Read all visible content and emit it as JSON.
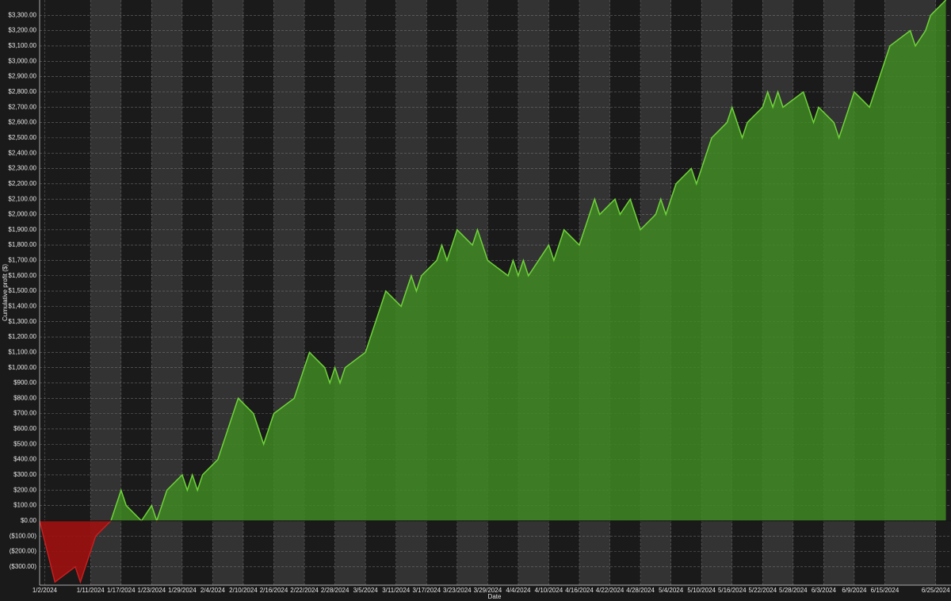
{
  "chart_data": {
    "type": "area",
    "y_label": "Cumulative profit ($)",
    "x_label": "Date",
    "xlim": [
      "2024-01-01",
      "2024-06-28"
    ],
    "ylim": [
      -420,
      3400
    ],
    "grid": true,
    "positive_color": "#3f8a22",
    "negative_color": "#9e1010",
    "line_color": "#6fd33a",
    "negative_line_color": "#c42020",
    "xticks": [
      {
        "value": "2024-01-02",
        "label": "1/2/2024"
      },
      {
        "value": "2024-01-11",
        "label": "1/11/2024"
      },
      {
        "value": "2024-01-17",
        "label": "1/17/2024"
      },
      {
        "value": "2024-01-23",
        "label": "1/23/2024"
      },
      {
        "value": "2024-01-29",
        "label": "1/29/2024"
      },
      {
        "value": "2024-02-04",
        "label": "2/4/2024"
      },
      {
        "value": "2024-02-10",
        "label": "2/10/2024"
      },
      {
        "value": "2024-02-16",
        "label": "2/16/2024"
      },
      {
        "value": "2024-02-22",
        "label": "2/22/2024"
      },
      {
        "value": "2024-02-28",
        "label": "2/28/2024"
      },
      {
        "value": "2024-03-05",
        "label": "3/5/2024"
      },
      {
        "value": "2024-03-11",
        "label": "3/11/2024"
      },
      {
        "value": "2024-03-17",
        "label": "3/17/2024"
      },
      {
        "value": "2024-03-23",
        "label": "3/23/2024"
      },
      {
        "value": "2024-03-29",
        "label": "3/29/2024"
      },
      {
        "value": "2024-04-04",
        "label": "4/4/2024"
      },
      {
        "value": "2024-04-10",
        "label": "4/10/2024"
      },
      {
        "value": "2024-04-16",
        "label": "4/16/2024"
      },
      {
        "value": "2024-04-22",
        "label": "4/22/2024"
      },
      {
        "value": "2024-04-28",
        "label": "4/28/2024"
      },
      {
        "value": "2024-05-04",
        "label": "5/4/2024"
      },
      {
        "value": "2024-05-10",
        "label": "5/10/2024"
      },
      {
        "value": "2024-05-16",
        "label": "5/16/2024"
      },
      {
        "value": "2024-05-22",
        "label": "5/22/2024"
      },
      {
        "value": "2024-05-28",
        "label": "5/28/2024"
      },
      {
        "value": "2024-06-03",
        "label": "6/3/2024"
      },
      {
        "value": "2024-06-09",
        "label": "6/9/2024"
      },
      {
        "value": "2024-06-15",
        "label": "6/15/2024"
      },
      {
        "value": "2024-06-25",
        "label": "6/25/2024"
      }
    ],
    "yticks": [
      {
        "value": -300,
        "label": "($300.00)"
      },
      {
        "value": -200,
        "label": "($200.00)"
      },
      {
        "value": -100,
        "label": "($100.00)"
      },
      {
        "value": 0,
        "label": "$0.00"
      },
      {
        "value": 100,
        "label": "$100.00"
      },
      {
        "value": 200,
        "label": "$200.00"
      },
      {
        "value": 300,
        "label": "$300.00"
      },
      {
        "value": 400,
        "label": "$400.00"
      },
      {
        "value": 500,
        "label": "$500.00"
      },
      {
        "value": 600,
        "label": "$600.00"
      },
      {
        "value": 700,
        "label": "$700.00"
      },
      {
        "value": 800,
        "label": "$800.00"
      },
      {
        "value": 900,
        "label": "$900.00"
      },
      {
        "value": 1000,
        "label": "$1,000.00"
      },
      {
        "value": 1100,
        "label": "$1,100.00"
      },
      {
        "value": 1200,
        "label": "$1,200.00"
      },
      {
        "value": 1300,
        "label": "$1,300.00"
      },
      {
        "value": 1400,
        "label": "$1,400.00"
      },
      {
        "value": 1500,
        "label": "$1,500.00"
      },
      {
        "value": 1600,
        "label": "$1,600.00"
      },
      {
        "value": 1700,
        "label": "$1,700.00"
      },
      {
        "value": 1800,
        "label": "$1,800.00"
      },
      {
        "value": 1900,
        "label": "$1,900.00"
      },
      {
        "value": 2000,
        "label": "$2,000.00"
      },
      {
        "value": 2100,
        "label": "$2,100.00"
      },
      {
        "value": 2200,
        "label": "$2,200.00"
      },
      {
        "value": 2300,
        "label": "$2,300.00"
      },
      {
        "value": 2400,
        "label": "$2,400.00"
      },
      {
        "value": 2500,
        "label": "$2,500.00"
      },
      {
        "value": 2600,
        "label": "$2,600.00"
      },
      {
        "value": 2700,
        "label": "$2,700.00"
      },
      {
        "value": 2800,
        "label": "$2,800.00"
      },
      {
        "value": 2900,
        "label": "$2,900.00"
      },
      {
        "value": 3000,
        "label": "$3,000.00"
      },
      {
        "value": 3100,
        "label": "$3,100.00"
      },
      {
        "value": 3200,
        "label": "$3,200.00"
      },
      {
        "value": 3300,
        "label": "$3,300.00"
      }
    ],
    "x": [
      "2024-01-01",
      "2024-01-04",
      "2024-01-08",
      "2024-01-09",
      "2024-01-12",
      "2024-01-15",
      "2024-01-17",
      "2024-01-18",
      "2024-01-21",
      "2024-01-23",
      "2024-01-24",
      "2024-01-26",
      "2024-01-29",
      "2024-01-30",
      "2024-01-31",
      "2024-02-01",
      "2024-02-02",
      "2024-02-05",
      "2024-02-09",
      "2024-02-12",
      "2024-02-14",
      "2024-02-16",
      "2024-02-20",
      "2024-02-23",
      "2024-02-26",
      "2024-02-27",
      "2024-02-28",
      "2024-02-29",
      "2024-03-01",
      "2024-03-05",
      "2024-03-09",
      "2024-03-12",
      "2024-03-14",
      "2024-03-15",
      "2024-03-16",
      "2024-03-19",
      "2024-03-20",
      "2024-03-21",
      "2024-03-23",
      "2024-03-26",
      "2024-03-27",
      "2024-03-29",
      "2024-04-02",
      "2024-04-03",
      "2024-04-04",
      "2024-04-05",
      "2024-04-06",
      "2024-04-08",
      "2024-04-10",
      "2024-04-11",
      "2024-04-13",
      "2024-04-16",
      "2024-04-19",
      "2024-04-20",
      "2024-04-23",
      "2024-04-24",
      "2024-04-26",
      "2024-04-28",
      "2024-05-01",
      "2024-05-02",
      "2024-05-03",
      "2024-05-05",
      "2024-05-08",
      "2024-05-09",
      "2024-05-12",
      "2024-05-15",
      "2024-05-16",
      "2024-05-18",
      "2024-05-19",
      "2024-05-22",
      "2024-05-23",
      "2024-05-24",
      "2024-05-25",
      "2024-05-26",
      "2024-05-30",
      "2024-06-01",
      "2024-06-02",
      "2024-06-05",
      "2024-06-06",
      "2024-06-09",
      "2024-06-12",
      "2024-06-16",
      "2024-06-20",
      "2024-06-21",
      "2024-06-23",
      "2024-06-24",
      "2024-06-27"
    ],
    "values": [
      0,
      -400,
      -300,
      -400,
      -100,
      0,
      200,
      100,
      0,
      100,
      0,
      200,
      300,
      200,
      300,
      200,
      300,
      400,
      800,
      700,
      500,
      700,
      800,
      1100,
      1000,
      900,
      1000,
      900,
      1000,
      1100,
      1500,
      1400,
      1600,
      1500,
      1600,
      1700,
      1800,
      1700,
      1900,
      1800,
      1900,
      1700,
      1600,
      1700,
      1600,
      1700,
      1600,
      1700,
      1800,
      1700,
      1900,
      1800,
      2100,
      2000,
      2100,
      2000,
      2100,
      1900,
      2000,
      2100,
      2000,
      2200,
      2300,
      2200,
      2500,
      2600,
      2700,
      2500,
      2600,
      2700,
      2800,
      2700,
      2800,
      2700,
      2800,
      2600,
      2700,
      2600,
      2500,
      2800,
      2700,
      3100,
      3200,
      3100,
      3200,
      3300,
      3400
    ]
  }
}
